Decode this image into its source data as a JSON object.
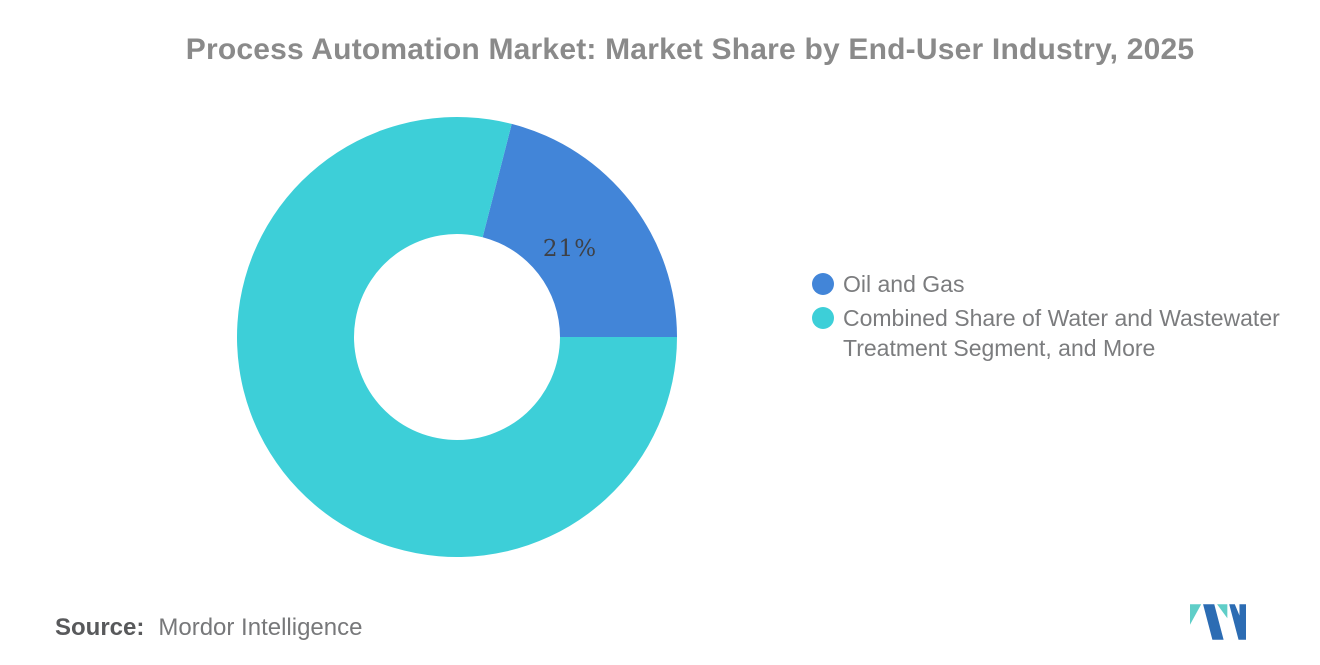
{
  "title": "Process Automation Market: Market Share by End-User Industry, 2025",
  "chart_data": {
    "type": "pie",
    "subtype": "donut",
    "title": "Process Automation Market: Market Share by End-User Industry, 2025",
    "start_angle_deg": 14.4,
    "direction": "clockwise",
    "legend_position": "right",
    "slices": [
      {
        "label": "Oil and Gas",
        "value": 21,
        "color": "#4285D8",
        "label_text": "21%"
      },
      {
        "label": "Combined Share of Water and Wastewater Treatment Segment, and More",
        "value": 79,
        "color": "#3DCFD8",
        "label_text": ""
      }
    ]
  },
  "legend": {
    "items": [
      {
        "lines": [
          "Oil and Gas"
        ]
      },
      {
        "lines": [
          "Combined Share of Water and Wastewater",
          "Treatment Segment, and More"
        ]
      }
    ]
  },
  "source": {
    "label": "Source:",
    "value": "Mordor Intelligence"
  },
  "logo": {
    "name": "mordor-intelligence-logo",
    "teal": "#5FCEC8",
    "blue": "#2C6CB3"
  },
  "colors": {
    "title_text": "#8A8A8A",
    "legend_text": "#7B7C7E",
    "slice_label_text": "#3E4147",
    "background": "#FFFFFF"
  }
}
